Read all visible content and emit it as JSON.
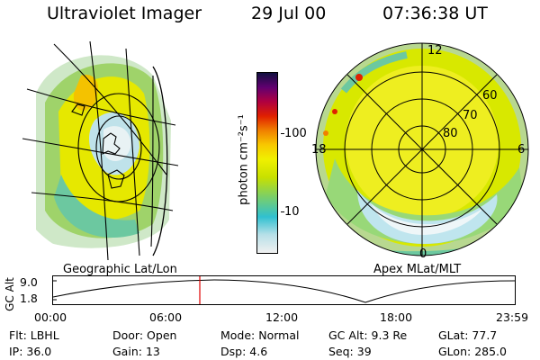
{
  "header": {
    "title": "Ultraviolet Imager",
    "date": "29 Jul 00",
    "time": "07:36:38 UT"
  },
  "left_panel": {
    "caption": "Geographic Lat/Lon"
  },
  "right_panel": {
    "caption": "Apex MLat/MLT",
    "lat_labels": [
      "60",
      "70",
      "80"
    ],
    "mlt_labels": {
      "top": "12",
      "left": "18",
      "right": "6",
      "bottom": "0"
    }
  },
  "colorbar": {
    "unit_label": "photon cm⁻²s⁻¹",
    "ticks": [
      "100",
      "10"
    ],
    "colors": [
      "#f0f0f0",
      "#b8e0e8",
      "#30c0d0",
      "#80d060",
      "#c8e000",
      "#f0f000",
      "#f8c800",
      "#f08000",
      "#e02000",
      "#b00040",
      "#600070",
      "#101040"
    ]
  },
  "altitude_plot": {
    "ylabel": "GC Alt",
    "y_ticks": [
      "9.0",
      "1.8"
    ],
    "x_ticks": [
      "00:00",
      "06:00",
      "12:00",
      "18:00",
      "23:59"
    ],
    "marker_color": "#e00000"
  },
  "status": {
    "row1": [
      {
        "key": "Flt:",
        "value": "LBHL"
      },
      {
        "key": "Door:",
        "value": "Open"
      },
      {
        "key": "Mode:",
        "value": "Normal"
      },
      {
        "key": "GC Alt:",
        "value": "9.3 Re"
      },
      {
        "key": "GLat:",
        "value": "77.7"
      }
    ],
    "row2": [
      {
        "key": "IP:",
        "value": "36.0"
      },
      {
        "key": "Gain:",
        "value": "13"
      },
      {
        "key": "Dsp:",
        "value": "4.6"
      },
      {
        "key": "Seq:",
        "value": "39"
      },
      {
        "key": "GLon:",
        "value": "285.0"
      }
    ]
  }
}
